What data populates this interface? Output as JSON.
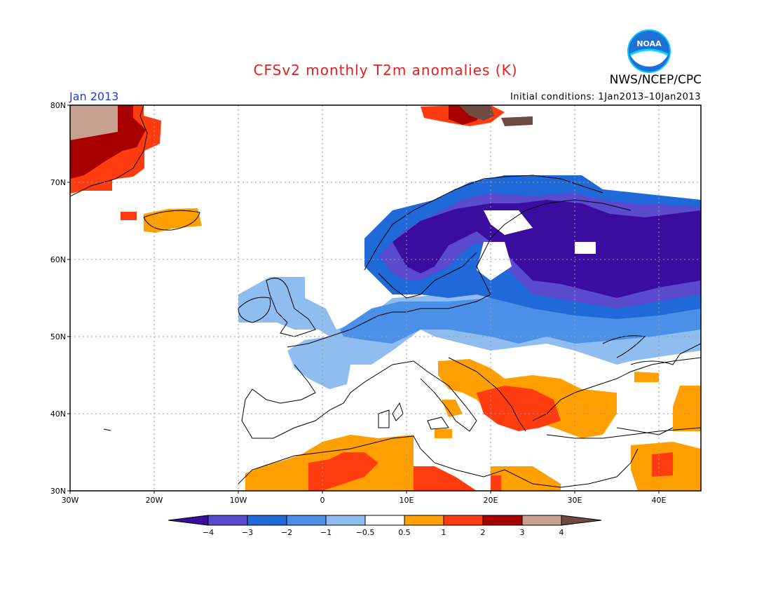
{
  "title": "CFSv2 monthly T2m anomalies (K)",
  "month": "Jan 2013",
  "initial_conditions": "Initial conditions: 1Jan2013–10Jan2013",
  "agency": "NWS/NCEP/CPC",
  "logo_text": "NOAA",
  "axes": {
    "lat_labels": [
      "80N",
      "70N",
      "60N",
      "50N",
      "40N",
      "30N"
    ],
    "lon_labels": [
      "30W",
      "20W",
      "10W",
      "0",
      "10E",
      "20E",
      "30E",
      "40E"
    ]
  },
  "colorbar": {
    "labels": [
      "−4",
      "−3",
      "−2",
      "−1",
      "−0.5",
      "0.5",
      "1",
      "2",
      "3",
      "4"
    ],
    "colors": [
      "#3a0ca0",
      "#5a4ad0",
      "#1f6ad8",
      "#4a90e8",
      "#8fbdf0",
      "#ffffff",
      "#ffa000",
      "#ff3c10",
      "#a80000",
      "#c8a090",
      "#6e4a40"
    ]
  },
  "anomaly_regions": [
    {
      "name": "greenland",
      "class": "+2 to +4"
    },
    {
      "name": "iceland",
      "class": "+0.5 to +1"
    },
    {
      "name": "scandinavia-russia",
      "class": "-2 to -4"
    },
    {
      "name": "central-europe-uk",
      "class": "-0.5 to -2"
    },
    {
      "name": "balkans",
      "class": "+1 to +2"
    },
    {
      "name": "north-africa",
      "class": "+0.5 to +2"
    }
  ]
}
